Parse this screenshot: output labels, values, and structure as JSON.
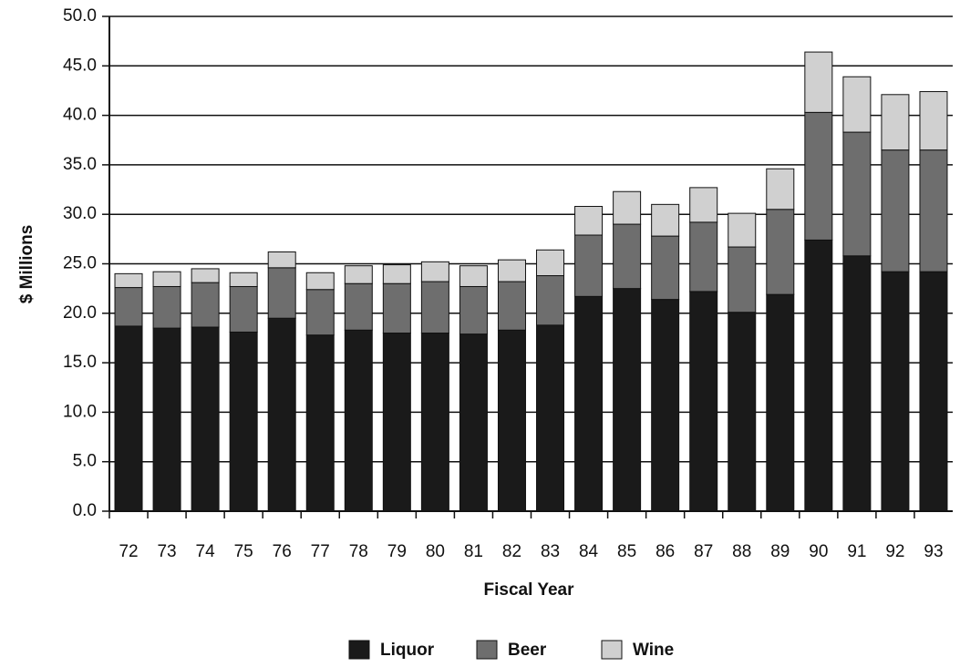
{
  "chart_data": {
    "type": "stacked_bar",
    "x_label": "Fiscal Year",
    "y_label": "$ Millions",
    "categories": [
      "72",
      "73",
      "74",
      "75",
      "76",
      "77",
      "78",
      "79",
      "80",
      "81",
      "82",
      "83",
      "84",
      "85",
      "86",
      "87",
      "88",
      "89",
      "90",
      "91",
      "92",
      "93"
    ],
    "series": [
      {
        "name": "Liquor",
        "color": "#1a1a1a",
        "values": [
          18.7,
          18.5,
          18.6,
          18.1,
          19.5,
          17.8,
          18.3,
          18.0,
          18.0,
          17.9,
          18.3,
          18.8,
          21.7,
          22.5,
          21.4,
          22.2,
          20.1,
          21.9,
          27.4,
          25.8,
          24.2,
          24.2
        ]
      },
      {
        "name": "Beer",
        "color": "#6e6e6e",
        "values": [
          3.9,
          4.2,
          4.5,
          4.6,
          5.1,
          4.6,
          4.7,
          5.0,
          5.2,
          4.8,
          4.9,
          5.0,
          6.2,
          6.5,
          6.4,
          7.0,
          6.6,
          8.6,
          12.9,
          12.5,
          12.3,
          12.3
        ]
      },
      {
        "name": "Wine",
        "color": "#d0d0d0",
        "values": [
          1.4,
          1.5,
          1.4,
          1.4,
          1.6,
          1.7,
          1.8,
          1.9,
          2.0,
          2.1,
          2.2,
          2.6,
          2.9,
          3.3,
          3.2,
          3.5,
          3.4,
          4.1,
          6.1,
          5.6,
          5.6,
          5.9
        ]
      }
    ],
    "ylim": [
      0,
      50
    ],
    "yticks": [
      {
        "value": 0,
        "label": "0.0"
      },
      {
        "value": 5,
        "label": "5.0"
      },
      {
        "value": 10,
        "label": "10.0"
      },
      {
        "value": 15,
        "label": "15.0"
      },
      {
        "value": 20,
        "label": "20.0"
      },
      {
        "value": 25,
        "label": "25.0"
      },
      {
        "value": 30,
        "label": "30.0"
      },
      {
        "value": 35,
        "label": "35.0"
      },
      {
        "value": 40,
        "label": "40.0"
      },
      {
        "value": 45,
        "label": "45.0"
      },
      {
        "value": 50,
        "label": "50.0"
      }
    ],
    "grid": true,
    "legend": "bottom"
  }
}
